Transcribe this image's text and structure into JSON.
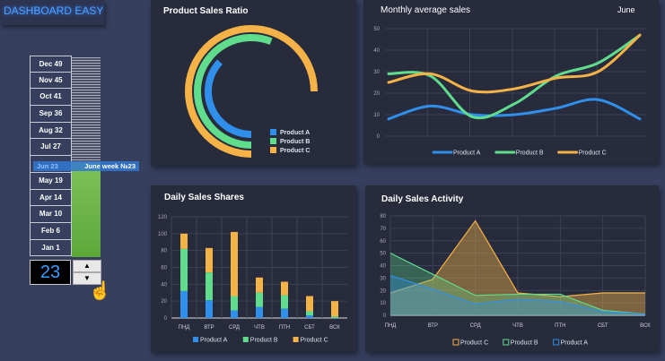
{
  "header": {
    "title": "DASHBOARD EASY"
  },
  "timeline": {
    "items": [
      "Dec 49",
      "Nov 45",
      "Oct 41",
      "Sep 36",
      "Aug 32",
      "Jul 27",
      "Jun 23",
      "May 19",
      "Apr 14",
      "Mar 10",
      "Feb 6",
      "Jan 1"
    ],
    "selected_label": "June week №23",
    "week": "23",
    "progress_fraction": 0.47
  },
  "colors": {
    "product_a": "#2f8fea",
    "product_b": "#5fdc8c",
    "product_c": "#f5b247",
    "background": "#363f5e",
    "panel": "#272b3c"
  },
  "chart_data": [
    {
      "type": "radial-bar",
      "title": "Product Sales Ratio",
      "series": [
        {
          "name": "Product A",
          "value": 37
        },
        {
          "name": "Product B",
          "value": 56
        },
        {
          "name": "Product C",
          "value": 75
        }
      ],
      "max": 100
    },
    {
      "type": "line",
      "title": "Monthly average sales",
      "subtitle": "June",
      "ylim": [
        0,
        50
      ],
      "yticks": [
        0,
        10,
        20,
        30,
        40,
        50
      ],
      "grid": true,
      "legend": "bottom",
      "series": [
        {
          "name": "Product A",
          "values": [
            8,
            14,
            10,
            10,
            13,
            17,
            8
          ]
        },
        {
          "name": "Product B",
          "values": [
            29,
            28,
            9,
            15,
            28,
            34,
            47
          ]
        },
        {
          "name": "Product C",
          "values": [
            25,
            29,
            21,
            22,
            27,
            30,
            47
          ]
        }
      ]
    },
    {
      "type": "bar",
      "stacked": true,
      "title": "Daily Sales Shares",
      "categories": [
        "ПНД",
        "ВТР",
        "СРД",
        "ЧТВ",
        "ПТН",
        "СБТ",
        "ВСК"
      ],
      "ylim": [
        0,
        120
      ],
      "yticks": [
        0,
        20,
        40,
        60,
        80,
        100,
        120
      ],
      "grid": true,
      "legend": "bottom",
      "series": [
        {
          "name": "Product A",
          "values": [
            32,
            21,
            9,
            13,
            11,
            3,
            0
          ]
        },
        {
          "name": "Product B",
          "values": [
            50,
            33,
            17,
            17,
            16,
            5,
            2
          ]
        },
        {
          "name": "Product C",
          "values": [
            18,
            29,
            76,
            18,
            16,
            18,
            18
          ]
        }
      ]
    },
    {
      "type": "area",
      "title": "Daily Sales Activity",
      "categories": [
        "ПНД",
        "ВТР",
        "СРД",
        "ЧТВ",
        "ПТН",
        "СБТ",
        "ВСК"
      ],
      "ylim": [
        0,
        80
      ],
      "yticks": [
        0,
        10,
        20,
        30,
        40,
        50,
        60,
        70,
        80
      ],
      "grid": true,
      "legend": "bottom",
      "series": [
        {
          "name": "Product C",
          "values": [
            18,
            29,
            76,
            18,
            15,
            18,
            18
          ]
        },
        {
          "name": "Product B",
          "values": [
            50,
            33,
            16,
            17,
            17,
            4,
            1
          ]
        },
        {
          "name": "Product A",
          "values": [
            32,
            21,
            9,
            13,
            11,
            3,
            1
          ]
        }
      ]
    }
  ]
}
